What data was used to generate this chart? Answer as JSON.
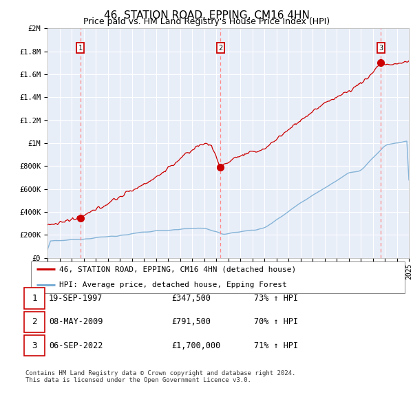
{
  "title": "46, STATION ROAD, EPPING, CM16 4HN",
  "subtitle": "Price paid vs. HM Land Registry's House Price Index (HPI)",
  "x_start_year": 1995,
  "x_end_year": 2025,
  "y_max": 2000000,
  "y_ticks": [
    0,
    200000,
    400000,
    600000,
    800000,
    1000000,
    1200000,
    1400000,
    1600000,
    1800000,
    2000000
  ],
  "y_tick_labels": [
    "£0",
    "£200K",
    "£400K",
    "£600K",
    "£800K",
    "£1M",
    "£1.2M",
    "£1.4M",
    "£1.6M",
    "£1.8M",
    "£2M"
  ],
  "sale_dates": [
    1997.72,
    2009.35,
    2022.68
  ],
  "sale_prices": [
    347500,
    791500,
    1700000
  ],
  "sale_labels": [
    "1",
    "2",
    "3"
  ],
  "red_line_color": "#cc0000",
  "blue_line_color": "#7aadd4",
  "dashed_line_color": "#ff8888",
  "background_color": "#e8eef8",
  "legend_label_red": "46, STATION ROAD, EPPING, CM16 4HN (detached house)",
  "legend_label_blue": "HPI: Average price, detached house, Epping Forest",
  "table_rows": [
    {
      "num": "1",
      "date": "19-SEP-1997",
      "price": "£347,500",
      "change": "73% ↑ HPI"
    },
    {
      "num": "2",
      "date": "08-MAY-2009",
      "price": "£791,500",
      "change": "70% ↑ HPI"
    },
    {
      "num": "3",
      "date": "06-SEP-2022",
      "price": "£1,700,000",
      "change": "71% ↑ HPI"
    }
  ],
  "footer_text": "Contains HM Land Registry data © Crown copyright and database right 2024.\nThis data is licensed under the Open Government Licence v3.0.",
  "title_fontsize": 11,
  "subtitle_fontsize": 9,
  "axis_fontsize": 7.5,
  "legend_fontsize": 8,
  "table_fontsize": 8.5
}
